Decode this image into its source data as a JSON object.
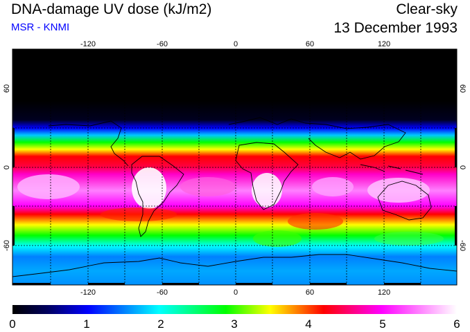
{
  "header": {
    "title": "DNA-damage UV dose (kJ/m2)",
    "subtitle": "MSR - KNMI",
    "sky_condition": "Clear-sky",
    "date": "13 December 1993"
  },
  "map": {
    "lon_range": [
      -180,
      180
    ],
    "lat_range": [
      -90,
      90
    ],
    "top_lon_ticks": [
      "-120",
      "-60",
      "0",
      "60",
      "120"
    ],
    "bottom_lon_ticks": [
      "-120",
      "-60",
      "0",
      "60",
      "120"
    ],
    "left_lat_ticks": [
      "60",
      "0",
      "-60"
    ],
    "right_lat_ticks": [
      "60",
      "0",
      "-60"
    ]
  },
  "colorbar": {
    "min": 0,
    "max": 6,
    "labels": [
      "0",
      "1",
      "2",
      "3",
      "4",
      "5",
      "6"
    ],
    "stops": [
      "#000000",
      "#000060",
      "#0000ff",
      "#00c8ff",
      "#00ff00",
      "#ffff00",
      "#ff0000",
      "#ff00ff",
      "#ffffff"
    ]
  },
  "colors": {
    "title": "#000000",
    "subtitle": "#0000ff",
    "grid": "#000000"
  }
}
